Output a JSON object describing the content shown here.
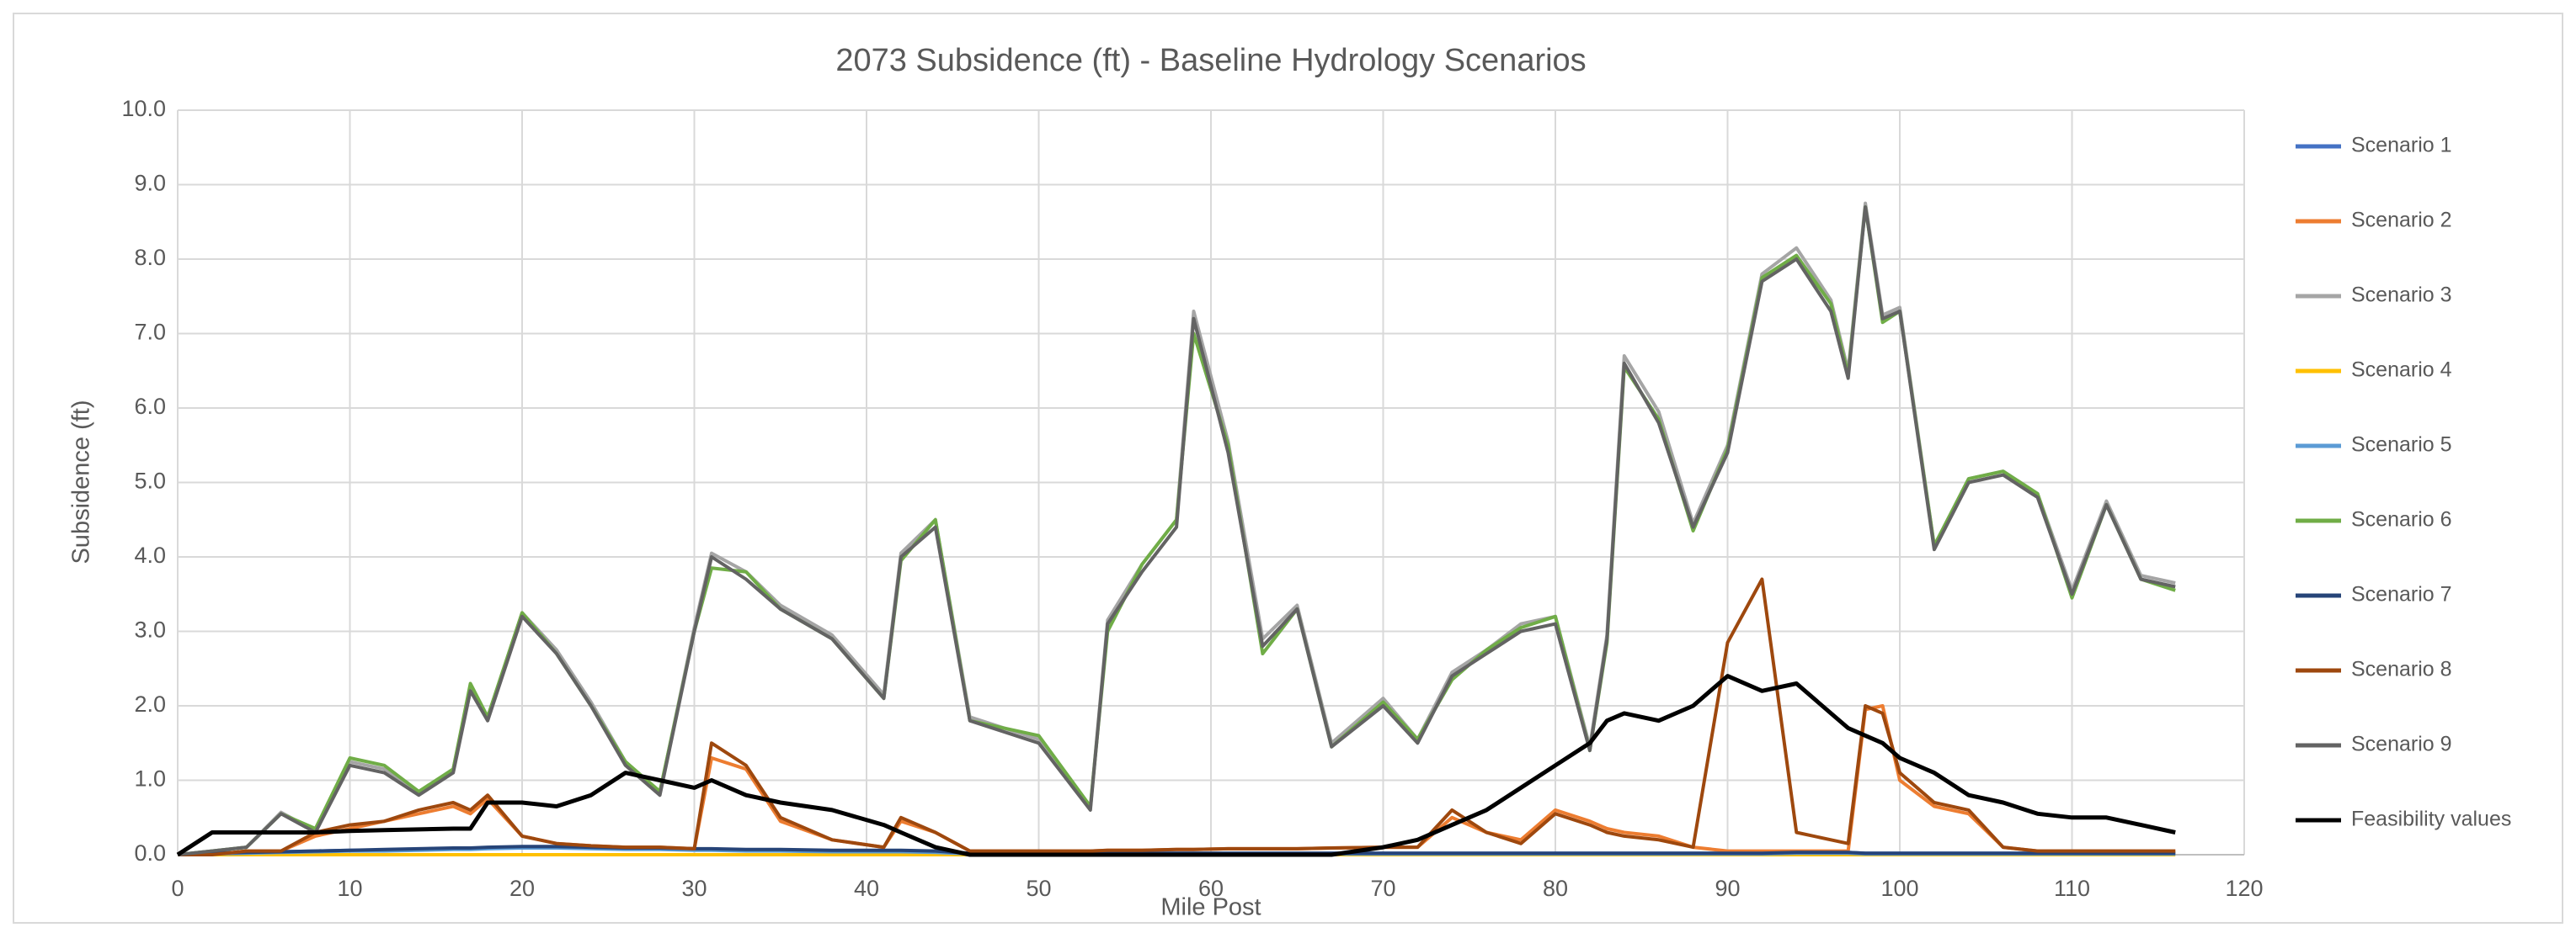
{
  "chart_data": {
    "type": "line",
    "title": "2073 Subsidence (ft) - Baseline Hydrology Scenarios",
    "x_label": "Mile Post",
    "y_label": "Subsidence (ft)",
    "xlim": [
      0,
      120
    ],
    "xticks": [
      0,
      10,
      20,
      30,
      40,
      50,
      60,
      70,
      80,
      90,
      100,
      110,
      120
    ],
    "ylim": [
      0,
      10
    ],
    "yticks": [
      {
        "value": 0,
        "label": "0.0"
      },
      {
        "value": 1,
        "label": "1.0"
      },
      {
        "value": 2,
        "label": "2.0"
      },
      {
        "value": 3,
        "label": "3.0"
      },
      {
        "value": 4,
        "label": "4.0"
      },
      {
        "value": 5,
        "label": "5.0"
      },
      {
        "value": 6,
        "label": "6.0"
      },
      {
        "value": 7,
        "label": "7.0"
      },
      {
        "value": 8,
        "label": "8.0"
      },
      {
        "value": 9,
        "label": "9.0"
      },
      {
        "value": 10,
        "label": "10.0"
      }
    ],
    "grid": true,
    "legend": "right",
    "x": [
      0,
      2,
      4,
      6,
      8,
      10,
      12,
      14,
      16,
      17,
      18,
      20,
      22,
      24,
      26,
      28,
      30,
      31,
      33,
      35,
      38,
      41,
      42,
      44,
      46,
      50,
      53,
      54,
      56,
      58,
      59,
      61,
      63,
      65,
      67,
      70,
      72,
      74,
      76,
      78,
      80,
      82,
      83,
      84,
      86,
      88,
      90,
      92,
      94,
      96,
      97,
      98,
      99,
      100,
      102,
      104,
      106,
      108,
      110,
      112,
      114,
      116
    ],
    "series": [
      {
        "name": "Scenario 1",
        "color": "#4472c4",
        "values": [
          0,
          0.02,
          0.03,
          0.04,
          0.05,
          0.06,
          0.06,
          0.07,
          0.08,
          0.08,
          0.09,
          0.1,
          0.1,
          0.09,
          0.08,
          0.08,
          0.07,
          0.07,
          0.06,
          0.06,
          0.05,
          0.05,
          0.05,
          0.04,
          0.02,
          0.02,
          0.02,
          0.02,
          0.02,
          0.02,
          0.02,
          0.02,
          0.02,
          0.02,
          0.02,
          0.02,
          0.02,
          0.02,
          0.02,
          0.02,
          0.02,
          0.02,
          0.02,
          0.02,
          0.02,
          0.02,
          0.02,
          0.02,
          0.03,
          0.03,
          0.03,
          0.02,
          0.02,
          0.02,
          0.02,
          0.02,
          0.02,
          0.02,
          0.02,
          0.02,
          0.02,
          0.02
        ]
      },
      {
        "name": "Scenario 2",
        "color": "#ed7d31",
        "values": [
          0,
          0,
          0.05,
          0.05,
          0.25,
          0.35,
          0.45,
          0.55,
          0.65,
          0.55,
          0.75,
          0.25,
          0.15,
          0.12,
          0.1,
          0.1,
          0.08,
          1.3,
          1.15,
          0.45,
          0.2,
          0.1,
          0.45,
          0.3,
          0.05,
          0.05,
          0.05,
          0.06,
          0.06,
          0.07,
          0.07,
          0.08,
          0.08,
          0.08,
          0.09,
          0.1,
          0.1,
          0.5,
          0.3,
          0.2,
          0.6,
          0.45,
          0.35,
          0.3,
          0.25,
          0.1,
          0.05,
          0.05,
          0.05,
          0.05,
          0.05,
          1.95,
          2.0,
          1.0,
          0.65,
          0.55,
          0.1,
          0.05,
          0.05,
          0.05,
          0.05,
          0.05
        ]
      },
      {
        "name": "Scenario 3",
        "color": "#a5a5a5",
        "values": [
          0,
          0.05,
          0.1,
          0.57,
          0.32,
          1.25,
          1.15,
          0.83,
          1.15,
          2.25,
          1.85,
          3.25,
          2.75,
          2.05,
          1.25,
          0.83,
          3.05,
          4.05,
          3.8,
          3.35,
          2.95,
          2.15,
          4.05,
          4.5,
          1.85,
          1.55,
          0.62,
          3.15,
          3.9,
          4.5,
          7.3,
          5.55,
          2.9,
          3.35,
          1.5,
          2.1,
          1.55,
          2.45,
          2.75,
          3.1,
          3.2,
          1.45,
          2.95,
          6.7,
          5.95,
          4.45,
          5.5,
          7.8,
          8.15,
          7.45,
          6.5,
          8.75,
          7.25,
          7.35,
          4.15,
          5.05,
          5.15,
          4.85,
          3.55,
          4.75,
          3.75,
          3.65
        ]
      },
      {
        "name": "Scenario 4",
        "color": "#ffc000",
        "values": [
          0,
          0,
          0,
          0,
          0,
          0,
          0,
          0,
          0,
          0,
          0,
          0,
          0,
          0,
          0,
          0,
          0,
          0,
          0,
          0,
          0,
          0,
          0,
          0,
          0,
          0,
          0,
          0,
          0,
          0,
          0,
          0,
          0,
          0,
          0,
          0,
          0,
          0,
          0,
          0,
          0,
          0,
          0,
          0,
          0,
          0,
          0,
          0,
          0,
          0,
          0,
          0,
          0,
          0,
          0,
          0,
          0,
          0,
          0,
          0,
          0,
          0
        ]
      },
      {
        "name": "Scenario 5",
        "color": "#5b9bd5",
        "values": [
          0,
          0.01,
          0.02,
          0.03,
          0.04,
          0.05,
          0.05,
          0.06,
          0.07,
          0.07,
          0.08,
          0.09,
          0.09,
          0.08,
          0.07,
          0.07,
          0.06,
          0.06,
          0.05,
          0.05,
          0.04,
          0.04,
          0.04,
          0.03,
          0.01,
          0.01,
          0.01,
          0.01,
          0.01,
          0.01,
          0.01,
          0.01,
          0.01,
          0.01,
          0.01,
          0.01,
          0.01,
          0.01,
          0.01,
          0.01,
          0.01,
          0.01,
          0.01,
          0.01,
          0.01,
          0.01,
          0.01,
          0.01,
          0.02,
          0.02,
          0.02,
          0.01,
          0.01,
          0.01,
          0.01,
          0.01,
          0.01,
          0.01,
          0.01,
          0.01,
          0.01,
          0.01
        ]
      },
      {
        "name": "Scenario 6",
        "color": "#70ad47",
        "values": [
          0,
          0.05,
          0.1,
          0.55,
          0.35,
          1.3,
          1.2,
          0.85,
          1.15,
          2.3,
          1.85,
          3.25,
          2.7,
          2.0,
          1.25,
          0.85,
          3.0,
          3.85,
          3.8,
          3.3,
          2.9,
          2.1,
          3.95,
          4.5,
          1.8,
          1.6,
          0.65,
          3.0,
          3.9,
          4.5,
          7.0,
          5.5,
          2.7,
          3.3,
          1.45,
          2.05,
          1.55,
          2.35,
          2.75,
          3.05,
          3.2,
          1.4,
          2.85,
          6.55,
          5.85,
          4.35,
          5.45,
          7.75,
          8.05,
          7.4,
          6.45,
          8.7,
          7.15,
          7.3,
          4.15,
          5.05,
          5.15,
          4.85,
          3.45,
          4.7,
          3.7,
          3.55
        ]
      },
      {
        "name": "Scenario 7",
        "color": "#264478",
        "values": [
          0,
          0.02,
          0.03,
          0.04,
          0.05,
          0.06,
          0.07,
          0.08,
          0.09,
          0.09,
          0.1,
          0.11,
          0.11,
          0.1,
          0.09,
          0.09,
          0.08,
          0.08,
          0.07,
          0.07,
          0.06,
          0.06,
          0.06,
          0.05,
          0.02,
          0.02,
          0.02,
          0.02,
          0.02,
          0.02,
          0.02,
          0.02,
          0.02,
          0.02,
          0.02,
          0.02,
          0.02,
          0.02,
          0.02,
          0.02,
          0.02,
          0.02,
          0.02,
          0.02,
          0.02,
          0.02,
          0.02,
          0.02,
          0.03,
          0.03,
          0.03,
          0.02,
          0.02,
          0.02,
          0.02,
          0.02,
          0.02,
          0.02,
          0.02,
          0.02,
          0.02,
          0.02
        ]
      },
      {
        "name": "Scenario 8",
        "color": "#9e480e",
        "values": [
          0,
          0,
          0.05,
          0.05,
          0.3,
          0.4,
          0.45,
          0.6,
          0.7,
          0.6,
          0.8,
          0.25,
          0.15,
          0.12,
          0.1,
          0.1,
          0.08,
          1.5,
          1.2,
          0.5,
          0.2,
          0.1,
          0.5,
          0.3,
          0.05,
          0.05,
          0.05,
          0.06,
          0.06,
          0.07,
          0.07,
          0.08,
          0.08,
          0.08,
          0.09,
          0.1,
          0.1,
          0.6,
          0.3,
          0.15,
          0.55,
          0.4,
          0.3,
          0.25,
          0.2,
          0.1,
          2.85,
          3.7,
          0.3,
          0.2,
          0.15,
          2.0,
          1.9,
          1.1,
          0.7,
          0.6,
          0.1,
          0.05,
          0.05,
          0.05,
          0.05,
          0.05
        ]
      },
      {
        "name": "Scenario 9",
        "color": "#636363",
        "values": [
          0,
          0.05,
          0.1,
          0.55,
          0.3,
          1.2,
          1.1,
          0.8,
          1.1,
          2.2,
          1.8,
          3.2,
          2.7,
          2.0,
          1.2,
          0.8,
          3.0,
          4.0,
          3.7,
          3.3,
          2.9,
          2.1,
          4.0,
          4.4,
          1.8,
          1.5,
          0.6,
          3.1,
          3.8,
          4.4,
          7.2,
          5.4,
          2.8,
          3.3,
          1.45,
          2.0,
          1.5,
          2.4,
          2.7,
          3.0,
          3.1,
          1.4,
          2.9,
          6.6,
          5.8,
          4.4,
          5.4,
          7.7,
          8.0,
          7.3,
          6.4,
          8.7,
          7.2,
          7.3,
          4.1,
          5.0,
          5.1,
          4.8,
          3.5,
          4.7,
          3.7,
          3.6
        ]
      },
      {
        "name": "Feasibility values",
        "color": "#000000",
        "values": [
          0,
          0.3,
          0.3,
          0.3,
          0.3,
          0.32,
          0.33,
          0.34,
          0.35,
          0.35,
          0.7,
          0.7,
          0.65,
          0.8,
          1.1,
          1.0,
          0.9,
          1.0,
          0.8,
          0.7,
          0.6,
          0.4,
          0.3,
          0.1,
          0,
          0,
          0,
          0,
          0,
          0,
          0,
          0,
          0,
          0,
          0,
          0.1,
          0.2,
          0.4,
          0.6,
          0.9,
          1.2,
          1.5,
          1.8,
          1.9,
          1.8,
          2.0,
          2.4,
          2.2,
          2.3,
          1.9,
          1.7,
          1.6,
          1.5,
          1.3,
          1.1,
          0.8,
          0.7,
          0.55,
          0.5,
          0.5,
          0.4,
          0.3
        ]
      }
    ]
  }
}
